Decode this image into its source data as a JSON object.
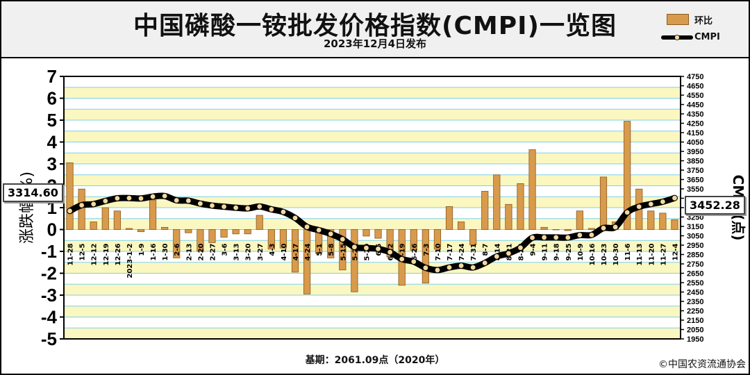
{
  "title": "中国磷酸一铵批发价格指数(CMPI)一览图",
  "subtitle": "2023年12月4日发布",
  "legend": {
    "bar_label": "环比",
    "line_label": "CMPI"
  },
  "base_note": "基期：2061.09点（2020年）",
  "copyright": "©中国农资流通协会",
  "callouts": {
    "left": "3314.60",
    "right": "3452.28"
  },
  "colors": {
    "bar": "#d89a4c",
    "bar_edge": "#8a5a20",
    "band": "#fbf7c0",
    "hline": "#7fd0e8",
    "line": "#000000",
    "marker": "#f2d7a0"
  },
  "chart_data": {
    "type": "bar+line",
    "title": "中国磷酸一铵批发价格指数(CMPI)一览图",
    "ylabel": "涨跌幅(%)",
    "y2label": "CMPI(点)",
    "ylim": [
      -5,
      7
    ],
    "y2lim": [
      1950,
      4750
    ],
    "yticks": [
      -5,
      -4,
      -3,
      -2,
      -1,
      0,
      1,
      2,
      3,
      4,
      5,
      6,
      7
    ],
    "y2ticks": [
      1950,
      2050,
      2150,
      2250,
      2350,
      2450,
      2550,
      2650,
      2750,
      2850,
      2950,
      3050,
      3150,
      3250,
      3350,
      3450,
      3550,
      3650,
      3750,
      3850,
      3950,
      4050,
      4150,
      4250,
      4350,
      4450,
      4550,
      4650,
      4750
    ],
    "categories": [
      "11-28",
      "12-5",
      "12-12",
      "12-19",
      "12-26",
      "2023-1-2",
      "1-9",
      "1-16",
      "1-30",
      "2-6",
      "2-13",
      "2-20",
      "2-27",
      "3-6",
      "3-13",
      "3-20",
      "3-27",
      "4-3",
      "4-10",
      "4-17",
      "4-24",
      "5-1",
      "5-8",
      "5-15",
      "5-22",
      "5-29",
      "6-5",
      "6-12",
      "6-19",
      "6-26",
      "7-3",
      "7-10",
      "7-17",
      "7-24",
      "7-31",
      "8-7",
      "8-14",
      "8-21",
      "8-28",
      "9-4",
      "9-11",
      "9-18",
      "9-25",
      "10-9",
      "10-16",
      "10-23",
      "10-30",
      "11-6",
      "11-13",
      "11-20",
      "11-27",
      "12-4"
    ],
    "series": [
      {
        "name": "环比",
        "type": "bar",
        "values": [
          3.05,
          1.85,
          0.35,
          1.0,
          0.85,
          0.05,
          -0.1,
          1.35,
          0.1,
          -1.3,
          -0.15,
          -1.0,
          -0.6,
          -0.35,
          -0.2,
          -0.2,
          0.65,
          -0.9,
          -0.85,
          -1.95,
          -2.95,
          -1.1,
          -1.3,
          -1.85,
          -2.85,
          -0.3,
          -0.4,
          -1.25,
          -2.55,
          -0.95,
          -2.45,
          -0.9,
          1.05,
          0.35,
          -0.7,
          1.75,
          2.5,
          1.15,
          2.1,
          3.65,
          0.1,
          0.0,
          -0.05,
          0.85,
          0.05,
          2.4,
          0.35,
          4.95,
          1.85,
          0.85,
          0.75,
          0.45
        ]
      },
      {
        "name": "CMPI",
        "type": "line",
        "values": [
          3314.6,
          3376,
          3388,
          3421,
          3450,
          3452,
          3448,
          3468,
          3474,
          3428,
          3424,
          3393,
          3372,
          3360,
          3349,
          3342,
          3362,
          3332,
          3304,
          3240,
          3145,
          3110,
          3070,
          3013,
          2930,
          2920,
          2910,
          2875,
          2801,
          2774,
          2708,
          2684,
          2712,
          2731,
          2712,
          2760,
          2829,
          2862,
          2922,
          3029,
          3032,
          3032,
          3031,
          3057,
          3059,
          3132,
          3143,
          3299,
          3360,
          3388,
          3413,
          3452.28
        ]
      }
    ],
    "annotations": [
      "3314.60",
      "3452.28"
    ],
    "grid": true
  }
}
